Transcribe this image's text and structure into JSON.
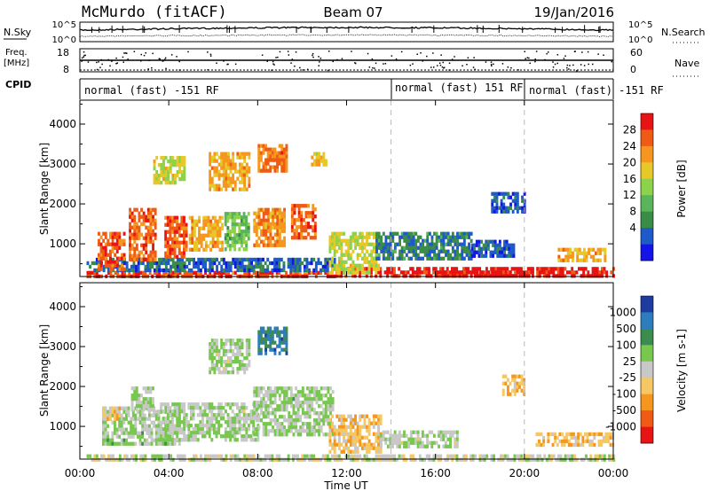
{
  "header": {
    "station": "McMurdo (fitACF)",
    "beam": "Beam 07",
    "date": "19/Jan/2016"
  },
  "top_panels": {
    "nsky_label": "N.Sky",
    "nsearch_label": "N.Search",
    "noise_ticks_left": [
      "10^5",
      "10^0"
    ],
    "noise_ticks_right": [
      "10^5",
      "10^0"
    ],
    "freq_label_1": "Freq.",
    "freq_label_2": "[MHz]",
    "freq_ticks": [
      "18",
      "8"
    ],
    "nave_label": "Nave",
    "nave_ticks": [
      "60",
      "0"
    ],
    "cpid_label": "CPID",
    "cpid_segments": [
      {
        "label": "normal (fast) -151 RF",
        "start_hour": 0,
        "end_hour": 14
      },
      {
        "label": "normal (fast) 151 RF",
        "start_hour": 14,
        "end_hour": 20
      },
      {
        "label": "normal (fast) -151 RF",
        "start_hour": 20,
        "end_hour": 24
      }
    ]
  },
  "axes": {
    "x_label": "Time UT",
    "y_label": "Slant Range [km]",
    "x_ticks": [
      "00:00",
      "04:00",
      "08:00",
      "12:00",
      "16:00",
      "20:00",
      "00:00"
    ],
    "x_tick_hours": [
      0,
      4,
      8,
      12,
      16,
      20,
      24
    ],
    "y_ticks": [
      "1000",
      "2000",
      "3000",
      "4000"
    ],
    "y_tick_values": [
      1000,
      2000,
      3000,
      4000
    ],
    "ylim": [
      180,
      4600
    ],
    "xlim_hours": [
      0,
      24
    ],
    "dashed_lines_hours": [
      14,
      20
    ]
  },
  "chart_data": [
    {
      "type": "heatmap",
      "title": "",
      "xlabel": "",
      "ylabel": "Slant Range [km]",
      "colorbar_label": "Power [dB]",
      "colorbar_ticks": [
        "28",
        "24",
        "20",
        "16",
        "12",
        "8",
        "4"
      ],
      "colorbar_range": [
        0,
        32
      ],
      "colors": [
        "#1414e6",
        "#1e5ac8",
        "#3a8c46",
        "#5ab45a",
        "#8cd24b",
        "#e6c828",
        "#f5961e",
        "#f05a14",
        "#e61414"
      ],
      "regions": [
        {
          "t0": 0.3,
          "t1": 11.5,
          "r0": 200,
          "r1": 320,
          "level": 28
        },
        {
          "t0": 11.5,
          "t1": 24,
          "r0": 180,
          "r1": 420,
          "level": 30
        },
        {
          "t0": 16.0,
          "t1": 20.2,
          "r0": 190,
          "r1": 330,
          "level": 31
        },
        {
          "t0": 0.3,
          "t1": 11.5,
          "r0": 320,
          "r1": 650,
          "level": 6
        },
        {
          "t0": 0.8,
          "t1": 2.0,
          "r0": 400,
          "r1": 1300,
          "level": 27
        },
        {
          "t0": 2.2,
          "t1": 3.4,
          "r0": 600,
          "r1": 1900,
          "level": 26
        },
        {
          "t0": 3.8,
          "t1": 4.8,
          "r0": 700,
          "r1": 1700,
          "level": 27
        },
        {
          "t0": 4.9,
          "t1": 6.4,
          "r0": 900,
          "r1": 1700,
          "level": 22
        },
        {
          "t0": 6.5,
          "t1": 7.6,
          "r0": 900,
          "r1": 1800,
          "level": 14
        },
        {
          "t0": 7.8,
          "t1": 9.2,
          "r0": 1000,
          "r1": 1900,
          "level": 24
        },
        {
          "t0": 9.5,
          "t1": 10.6,
          "r0": 1200,
          "r1": 2000,
          "level": 26
        },
        {
          "t0": 3.3,
          "t1": 4.7,
          "r0": 2500,
          "r1": 3200,
          "level": 18
        },
        {
          "t0": 5.8,
          "t1": 7.6,
          "r0": 2400,
          "r1": 3300,
          "level": 22
        },
        {
          "t0": 8.0,
          "t1": 9.3,
          "r0": 2800,
          "r1": 3500,
          "level": 25
        },
        {
          "t0": 10.4,
          "t1": 11.1,
          "r0": 3000,
          "r1": 3300,
          "level": 20
        },
        {
          "t0": 11.2,
          "t1": 13.4,
          "r0": 300,
          "r1": 1300,
          "level": 18
        },
        {
          "t0": 13.3,
          "t1": 17.6,
          "r0": 600,
          "r1": 1300,
          "level": 8
        },
        {
          "t0": 17.6,
          "t1": 19.5,
          "r0": 700,
          "r1": 1100,
          "level": 5
        },
        {
          "t0": 18.5,
          "t1": 20.0,
          "r0": 1800,
          "r1": 2300,
          "level": 5
        },
        {
          "t0": 21.5,
          "t1": 23.6,
          "r0": 600,
          "r1": 900,
          "level": 22
        }
      ]
    },
    {
      "type": "heatmap",
      "title": "",
      "xlabel": "Time UT",
      "ylabel": "Slant Range [km]",
      "colorbar_label": "Velocity [m s-1]",
      "colorbar_ticks": [
        "1000",
        "500",
        "100",
        "25",
        "-25",
        "-100",
        "-500",
        "-1000"
      ],
      "colorbar_range": [
        -1200,
        1200
      ],
      "colors": [
        "#1e3ca0",
        "#2d7dbe",
        "#3c8c50",
        "#78c850",
        "#c8c8c8",
        "#f5c864",
        "#f5961e",
        "#f05a14",
        "#e61414"
      ],
      "regions": [
        {
          "t0": 0.3,
          "t1": 24,
          "r0": 180,
          "r1": 300,
          "level": 0
        },
        {
          "t0": 1.0,
          "t1": 4.5,
          "r0": 600,
          "r1": 1500,
          "level": 150
        },
        {
          "t0": 3.5,
          "t1": 8.0,
          "r0": 700,
          "r1": 1600,
          "level": 130
        },
        {
          "t0": 2.3,
          "t1": 3.3,
          "r0": 1400,
          "r1": 2000,
          "level": 140
        },
        {
          "t0": 7.8,
          "t1": 11.4,
          "r0": 800,
          "r1": 2000,
          "level": 140
        },
        {
          "t0": 8.0,
          "t1": 9.3,
          "r0": 2800,
          "r1": 3500,
          "level": 700
        },
        {
          "t0": 5.8,
          "t1": 7.6,
          "r0": 2400,
          "r1": 3200,
          "level": 120
        },
        {
          "t0": 11.2,
          "t1": 13.5,
          "r0": 400,
          "r1": 1300,
          "level": -300
        },
        {
          "t0": 13.5,
          "t1": 17.0,
          "r0": 500,
          "r1": 900,
          "level": 120
        },
        {
          "t0": 19.0,
          "t1": 20.0,
          "r0": 1800,
          "r1": 2300,
          "level": -300
        },
        {
          "t0": 20.5,
          "t1": 24,
          "r0": 500,
          "r1": 850,
          "level": -300
        },
        {
          "t0": 1.0,
          "t1": 1.8,
          "r0": 1200,
          "r1": 1500,
          "level": -300
        }
      ]
    }
  ]
}
